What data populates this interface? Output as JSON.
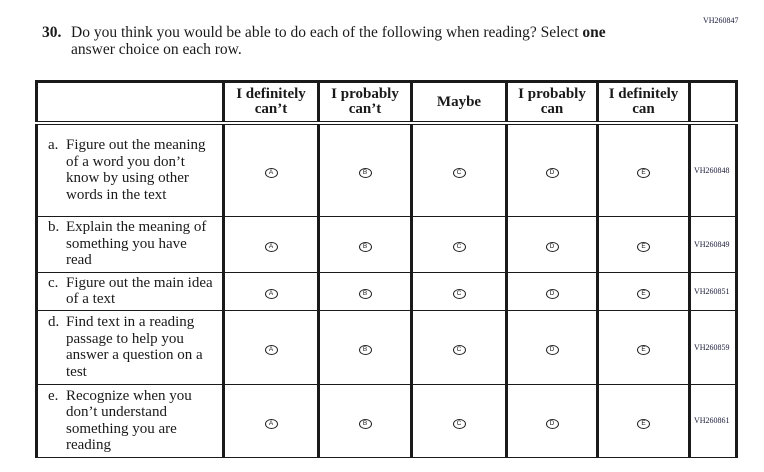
{
  "page_code": "VH260847",
  "question": {
    "number": "30.",
    "text_line1": "Do you think you would be able to do each of the following when reading? Select ",
    "emphasis": "one",
    "text_line2": "answer choice on each row."
  },
  "columns": [
    {
      "line1": "I definitely",
      "line2": "can’t"
    },
    {
      "line1": "I probably",
      "line2": "can’t"
    },
    {
      "line1": "Maybe",
      "line2": ""
    },
    {
      "line1": "I probably",
      "line2": "can"
    },
    {
      "line1": "I definitely",
      "line2": "can"
    }
  ],
  "bubble_letters": [
    "A",
    "B",
    "C",
    "D",
    "E"
  ],
  "rows": [
    {
      "label": "a.",
      "text": "Figure out the meaning of a word you don’t know by using other words in the text",
      "code": "VH260848"
    },
    {
      "label": "b.",
      "text": "Explain the meaning of something you have read",
      "code": "VH260849"
    },
    {
      "label": "c.",
      "text": "Figure out the main idea of a text",
      "code": "VH260851"
    },
    {
      "label": "d.",
      "text": "Find text in a reading passage to help you answer a question on a test",
      "code": "VH260859"
    },
    {
      "label": "e.",
      "text": "Recognize when you don’t understand something you are reading",
      "code": "VH260861"
    }
  ]
}
